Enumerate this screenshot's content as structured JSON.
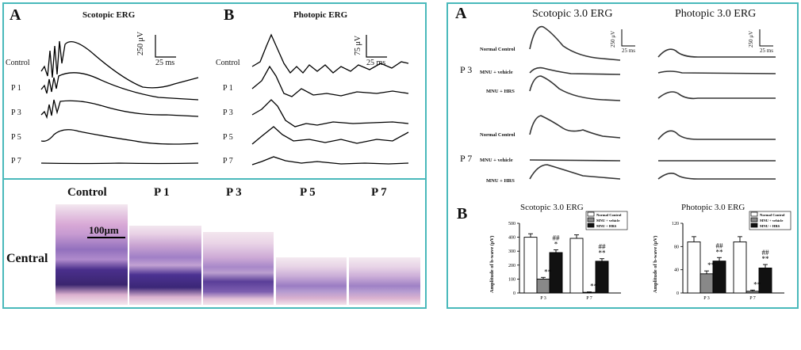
{
  "left_figure": {
    "panel_a": {
      "letter": "A",
      "title": "Scotopic ERG",
      "scale_v": "250 μV",
      "scale_t": "25 ms",
      "rows": [
        "Control",
        "P 1",
        "P 3",
        "P 5",
        "P 7"
      ]
    },
    "panel_b": {
      "letter": "B",
      "title": "Photopic ERG",
      "scale_v": "75 μV",
      "scale_t": "25 ms",
      "rows": [
        "Control",
        "P 1",
        "P 3",
        "P 5",
        "P 7"
      ]
    },
    "histology": {
      "columns": [
        "Control",
        "P 1",
        "P 3",
        "P 5",
        "P 7"
      ],
      "row_label": "Central",
      "scale_bar": "100μm"
    }
  },
  "right_figure": {
    "panel_a": {
      "letter": "A",
      "scotopic_title": "Scotopic 3.0 ERG",
      "photopic_title": "Photopic 3.0 ERG",
      "scotopic_scale_v": "250 μV",
      "photopic_scale_v": "250 μV",
      "scale_t": "25 ms",
      "group_p3": "P 3",
      "group_p7": "P 7",
      "trace_labels": [
        "Normal Control",
        "MNU + vehicle",
        "MNU + HRS",
        "Normal Control",
        "MNU + vehicle",
        "MNU + HRS"
      ]
    },
    "panel_b": {
      "letter": "B",
      "chart_data": [
        {
          "type": "bar",
          "title": "Scotopic 3.0 ERG",
          "ylabel": "Amplitude of b-wave (μV)",
          "categories": [
            "P 3",
            "P 7"
          ],
          "ylim": [
            0,
            500
          ],
          "yticks": [
            "0",
            "100",
            "200",
            "300",
            "400",
            "500"
          ],
          "series": [
            {
              "name": "Normal Control",
              "values": [
                400,
                392
              ],
              "errors": [
                25,
                25
              ],
              "color": "#ffffff"
            },
            {
              "name": "MNU + vehicle",
              "values": [
                100,
                5
              ],
              "errors": [
                12,
                3
              ],
              "color": "#888888"
            },
            {
              "name": "MNU + HRS",
              "values": [
                290,
                228
              ],
              "errors": [
                20,
                18
              ],
              "color": "#111111"
            }
          ],
          "annotations": [
            {
              "category": "P 3",
              "series": "MNU + vehicle",
              "text": "**"
            },
            {
              "category": "P 3",
              "series": "MNU + HRS",
              "text": "*"
            },
            {
              "category": "P 3",
              "series": "MNU + HRS",
              "text": "##"
            },
            {
              "category": "P 7",
              "series": "MNU + vehicle",
              "text": "**"
            },
            {
              "category": "P 7",
              "series": "MNU + HRS",
              "text": "**"
            },
            {
              "category": "P 7",
              "series": "MNU + HRS",
              "text": "##"
            }
          ]
        },
        {
          "type": "bar",
          "title": "Photopic 3.0 ERG",
          "ylabel": "Amplitude of b-wave (μV)",
          "categories": [
            "P 3",
            "P 7"
          ],
          "ylim": [
            0,
            120
          ],
          "yticks": [
            "0",
            "40",
            "80",
            "120"
          ],
          "series": [
            {
              "name": "Normal Control",
              "values": [
                88,
                88
              ],
              "errors": [
                9,
                9
              ],
              "color": "#ffffff"
            },
            {
              "name": "MNU + vehicle",
              "values": [
                33,
                3
              ],
              "errors": [
                5,
                2
              ],
              "color": "#888888"
            },
            {
              "name": "MNU + HRS",
              "values": [
                55,
                43
              ],
              "errors": [
                6,
                6
              ],
              "color": "#111111"
            }
          ],
          "annotations": [
            {
              "category": "P 3",
              "series": "MNU + vehicle",
              "text": "**"
            },
            {
              "category": "P 3",
              "series": "MNU + HRS",
              "text": "**"
            },
            {
              "category": "P 3",
              "series": "MNU + HRS",
              "text": "##"
            },
            {
              "category": "P 7",
              "series": "MNU + vehicle",
              "text": "**"
            },
            {
              "category": "P 7",
              "series": "MNU + HRS",
              "text": "**"
            },
            {
              "category": "P 7",
              "series": "MNU + HRS",
              "text": "##"
            }
          ]
        }
      ]
    }
  }
}
